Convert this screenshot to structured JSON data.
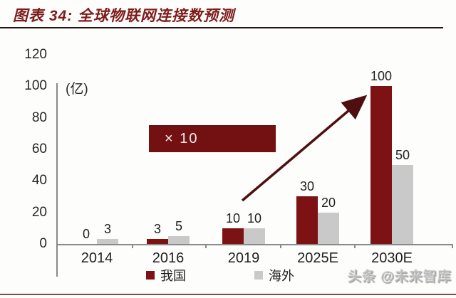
{
  "header": {
    "title": "图表 34:  全球物联网连接数预测"
  },
  "chart_data": {
    "type": "bar",
    "title": "全球物联网连接数预测",
    "unit_label": "(亿)",
    "categories": [
      "2014",
      "2016",
      "2019",
      "2025E",
      "2030E"
    ],
    "series": [
      {
        "name": "我国",
        "color": "#7d1214",
        "values": [
          0,
          3,
          10,
          30,
          100
        ]
      },
      {
        "name": "海外",
        "color": "#c9c9c9",
        "values": [
          3,
          5,
          10,
          20,
          50
        ]
      }
    ],
    "ylim": [
      0,
      120
    ],
    "ytick_step": 20,
    "grid": false,
    "legend_position": "bottom",
    "annotation": "× 10",
    "annotation_meaning": "growth arrow from 2019 bars up to the 2030E 我国 bar (10 → 100)"
  },
  "footer": {
    "watermark": "头条 @未来智库"
  },
  "colors": {
    "title": "#7e1b1b",
    "series_cn": "#7d1214",
    "series_overseas": "#c9c9c9",
    "callout_bg": "#721012",
    "arrow": "#4f0e0f",
    "bottom_rule": "#7e4a4a"
  }
}
